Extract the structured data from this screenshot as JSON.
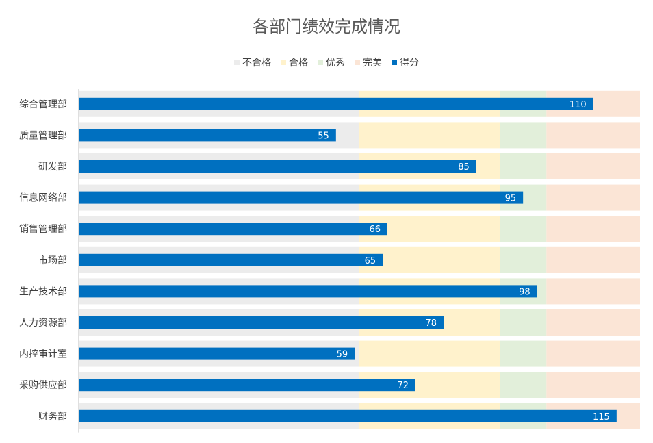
{
  "chart_data": {
    "type": "bar",
    "orientation": "horizontal",
    "title": "各部门绩效完成情况",
    "categories": [
      "综合管理部",
      "质量管理部",
      "研发部",
      "信息网络部",
      "销售管理部",
      "市场部",
      "生产技术部",
      "人力资源部",
      "内控审计室",
      "采购供应部",
      "财务部"
    ],
    "bands": [
      {
        "name": "不合格",
        "from": 0,
        "to": 60,
        "color": "#ECECEC"
      },
      {
        "name": "合格",
        "from": 60,
        "to": 90,
        "color": "#FFF2CC"
      },
      {
        "name": "优秀",
        "from": 90,
        "to": 100,
        "color": "#E2EFDA"
      },
      {
        "name": "完美",
        "from": 100,
        "to": 120,
        "color": "#FBE5D6"
      }
    ],
    "series": [
      {
        "name": "得分",
        "color": "#0070C0",
        "values": [
          110,
          55,
          85,
          95,
          66,
          65,
          98,
          78,
          59,
          72,
          115
        ]
      }
    ],
    "xlim": [
      0,
      120
    ],
    "legend_position": "top",
    "grid": false,
    "data_labels": true
  }
}
